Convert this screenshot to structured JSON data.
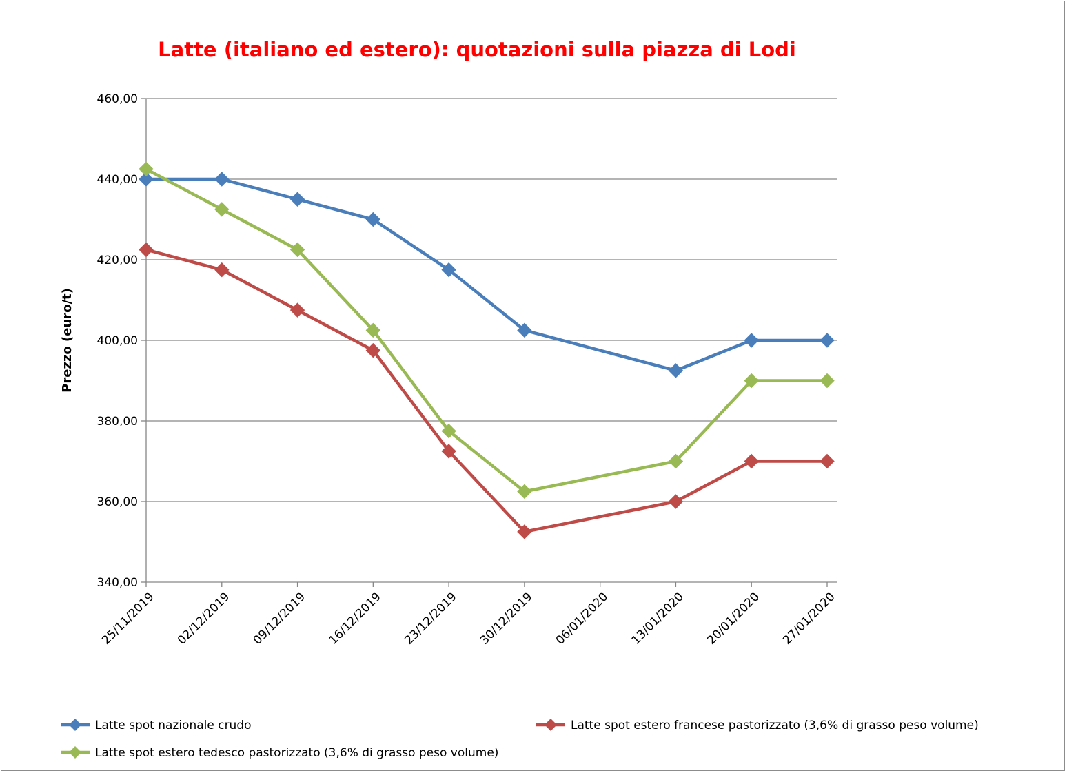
{
  "chart_data": {
    "type": "line",
    "title": "Latte (italiano ed estero): quotazioni sulla piazza di Lodi",
    "xlabel": "",
    "ylabel": "Prezzo (euro/t)",
    "ylim": [
      340,
      460
    ],
    "ytick_labels": [
      "340,00",
      "360,00",
      "380,00",
      "400,00",
      "420,00",
      "440,00",
      "460,00"
    ],
    "x_axis": "date",
    "x_tick_labels": [
      "25/11/2019",
      "02/12/2019",
      "09/12/2019",
      "16/12/2019",
      "23/12/2019",
      "30/12/2019",
      "06/01/2020",
      "13/01/2020",
      "20/01/2020",
      "27/01/2020"
    ],
    "x": [
      "2019-11-25",
      "2019-12-02",
      "2019-12-09",
      "2019-12-16",
      "2019-12-23",
      "2019-12-30",
      "2020-01-13",
      "2020-01-20",
      "2020-01-27"
    ],
    "grid": "horizontal",
    "legend_position": "bottom",
    "series": [
      {
        "name": "Latte spot nazionale crudo",
        "color": "#4a7ebb",
        "marker": "diamond",
        "values": [
          440,
          440,
          435,
          430,
          417.5,
          402.5,
          392.5,
          400,
          400
        ]
      },
      {
        "name": "Latte spot estero francese pastorizzato (3,6% di grasso peso volume)",
        "color": "#be4b48",
        "marker": "diamond",
        "values": [
          422.5,
          417.5,
          407.5,
          397.5,
          372.5,
          352.5,
          360,
          370,
          370
        ]
      },
      {
        "name": "Latte spot estero tedesco pastorizzato (3,6% di grasso peso volume)",
        "color": "#98b954",
        "marker": "diamond",
        "values": [
          442.5,
          432.5,
          422.5,
          402.5,
          377.5,
          362.5,
          370,
          390,
          390
        ]
      }
    ]
  }
}
